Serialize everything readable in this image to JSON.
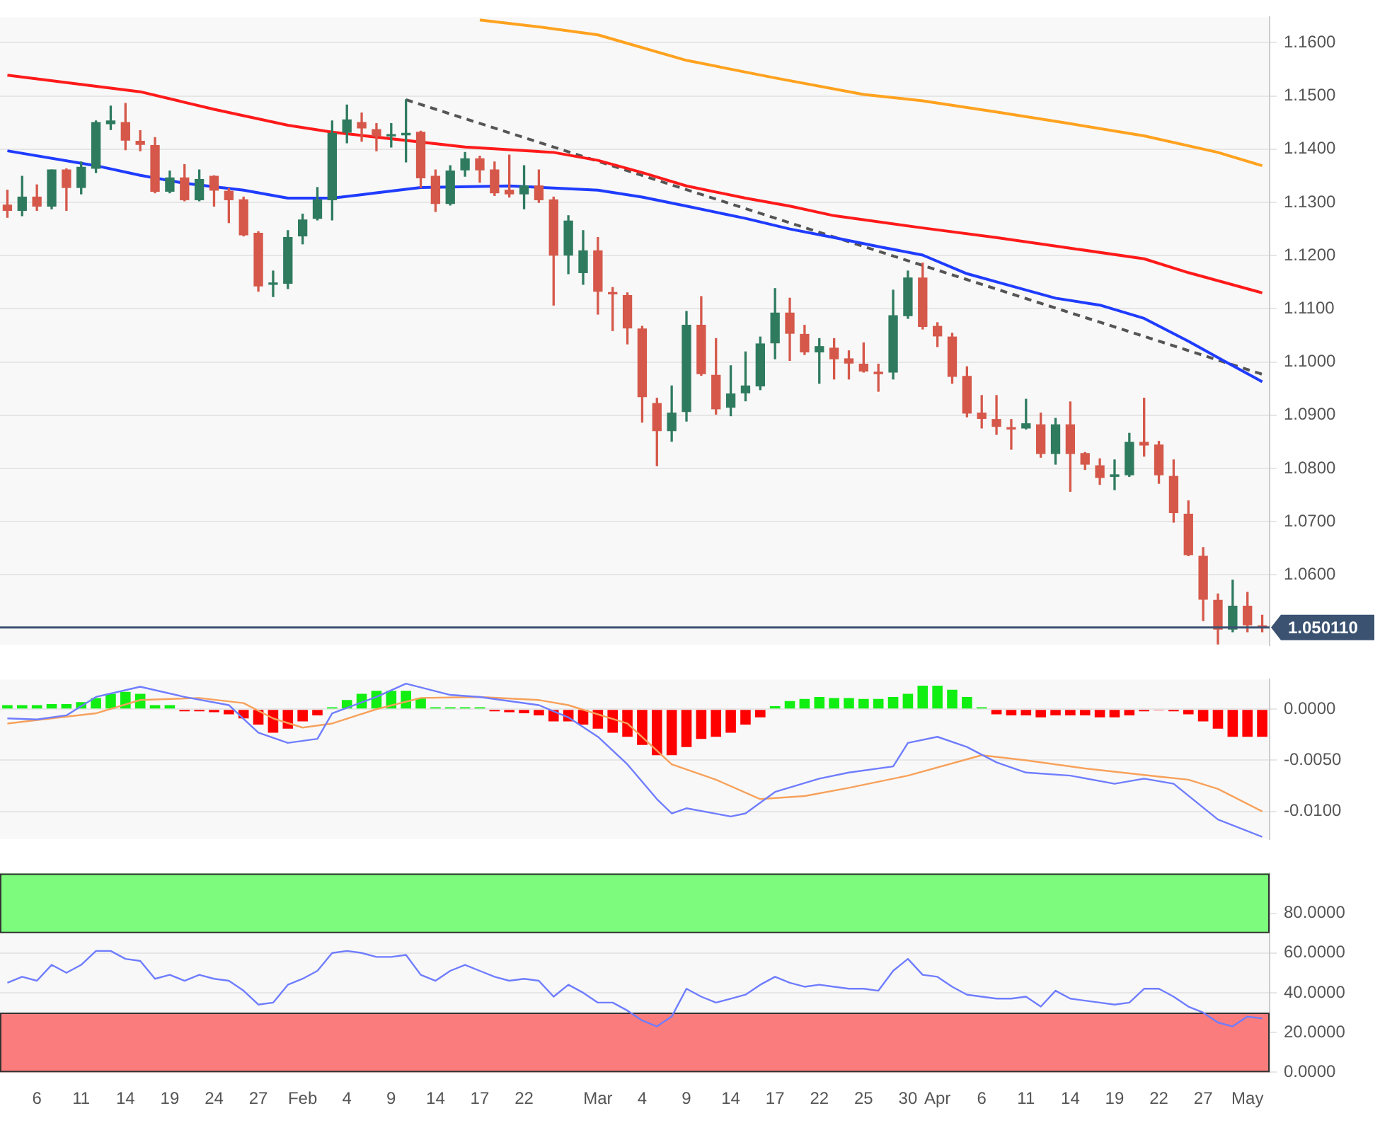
{
  "chart_data": [
    {
      "type": "candlestick",
      "grid": "y",
      "tick_labels": "y",
      "ohlc": [
        [
          1.1295,
          1.1323,
          1.1272,
          1.1285
        ],
        [
          1.1285,
          1.1349,
          1.1275,
          1.131
        ],
        [
          1.131,
          1.1333,
          1.1285,
          1.1293
        ],
        [
          1.1293,
          1.1361,
          1.1288,
          1.1361
        ],
        [
          1.1361,
          1.1363,
          1.1285,
          1.1328
        ],
        [
          1.1328,
          1.1376,
          1.1316,
          1.1366
        ],
        [
          1.1364,
          1.1453,
          1.1356,
          1.145
        ],
        [
          1.1448,
          1.1481,
          1.1437,
          1.1453
        ],
        [
          1.145,
          1.1486,
          1.1399,
          1.1417
        ],
        [
          1.1415,
          1.1435,
          1.1397,
          1.1409
        ],
        [
          1.1407,
          1.1422,
          1.1318,
          1.1321
        ],
        [
          1.1321,
          1.1359,
          1.1318,
          1.1346
        ],
        [
          1.1346,
          1.1371,
          1.1303,
          1.1305
        ],
        [
          1.1305,
          1.1361,
          1.1303,
          1.1343
        ],
        [
          1.1349,
          1.135,
          1.1293,
          1.1323
        ],
        [
          1.1321,
          1.1326,
          1.1262,
          1.1305
        ],
        [
          1.1305,
          1.131,
          1.1237,
          1.1239
        ],
        [
          1.1242,
          1.1245,
          1.1133,
          1.1143
        ],
        [
          1.1146,
          1.1171,
          1.1123,
          1.1148
        ],
        [
          1.1148,
          1.1247,
          1.1138,
          1.1234
        ],
        [
          1.1237,
          1.1278,
          1.1222,
          1.1267
        ],
        [
          1.127,
          1.1328,
          1.1267,
          1.1305
        ],
        [
          1.1305,
          1.1453,
          1.1267,
          1.143
        ],
        [
          1.1432,
          1.1483,
          1.1412,
          1.1455
        ],
        [
          1.145,
          1.1468,
          1.1415,
          1.144
        ],
        [
          1.1437,
          1.1448,
          1.1397,
          1.1425
        ],
        [
          1.1425,
          1.1448,
          1.1404,
          1.1427
        ],
        [
          1.1427,
          1.1493,
          1.1376,
          1.143
        ],
        [
          1.1432,
          1.1434,
          1.1328,
          1.1346
        ],
        [
          1.1349,
          1.1361,
          1.1283,
          1.1298
        ],
        [
          1.1298,
          1.1369,
          1.1295,
          1.1359
        ],
        [
          1.1361,
          1.1394,
          1.1349,
          1.1382
        ],
        [
          1.1382,
          1.1387,
          1.1338,
          1.1361
        ],
        [
          1.1361,
          1.1376,
          1.1313,
          1.1318
        ],
        [
          1.1323,
          1.1389,
          1.131,
          1.1316
        ],
        [
          1.1316,
          1.1369,
          1.1288,
          1.1331
        ],
        [
          1.1331,
          1.1361,
          1.13,
          1.1305
        ],
        [
          1.1305,
          1.131,
          1.1107,
          1.1201
        ],
        [
          1.1201,
          1.1275,
          1.1166,
          1.1265
        ],
        [
          1.1168,
          1.1247,
          1.1146,
          1.1209
        ],
        [
          1.1209,
          1.1234,
          1.109,
          1.1133
        ],
        [
          1.113,
          1.114,
          1.1059,
          1.1128
        ],
        [
          1.1125,
          1.113,
          1.1034,
          1.1064
        ],
        [
          1.1062,
          1.1067,
          1.0887,
          1.0935
        ],
        [
          1.0922,
          1.0932,
          1.0805,
          1.0871
        ],
        [
          1.0871,
          1.0955,
          1.0851,
          1.0904
        ],
        [
          1.0907,
          1.1095,
          1.0889,
          1.1069
        ],
        [
          1.1069,
          1.1123,
          1.0975,
          1.0978
        ],
        [
          1.0975,
          1.1044,
          1.0902,
          1.0912
        ],
        [
          1.0915,
          1.0993,
          1.0899,
          1.094
        ],
        [
          1.0942,
          1.1019,
          1.0927,
          1.0955
        ],
        [
          1.0955,
          1.1047,
          1.0948,
          1.1034
        ],
        [
          1.1036,
          1.1138,
          1.1006,
          1.1092
        ],
        [
          1.1092,
          1.112,
          1.1003,
          1.1054
        ],
        [
          1.1052,
          1.1069,
          1.1014,
          1.1019
        ],
        [
          1.1019,
          1.1044,
          1.096,
          1.1029
        ],
        [
          1.1026,
          1.1044,
          1.0968,
          1.1006
        ],
        [
          1.1006,
          1.1021,
          1.0968,
          1.0998
        ],
        [
          1.0996,
          1.1036,
          1.0981,
          1.0983
        ],
        [
          1.0981,
          1.0996,
          1.0945,
          1.0978
        ],
        [
          1.0981,
          1.1135,
          1.0968,
          1.1087
        ],
        [
          1.1087,
          1.1171,
          1.1082,
          1.1158
        ],
        [
          1.1158,
          1.1186,
          1.1062,
          1.1067
        ],
        [
          1.1067,
          1.1074,
          1.1029,
          1.1049
        ],
        [
          1.1047,
          1.1054,
          1.096,
          1.0973
        ],
        [
          1.0973,
          1.0991,
          1.0897,
          1.0904
        ],
        [
          1.0904,
          1.0937,
          1.0876,
          1.0894
        ],
        [
          1.0892,
          1.0937,
          1.0864,
          1.0879
        ],
        [
          1.0876,
          1.0892,
          1.0836,
          1.0874
        ],
        [
          1.0876,
          1.093,
          1.0874,
          1.0884
        ],
        [
          1.0882,
          1.0904,
          1.0821,
          1.0828
        ],
        [
          1.0828,
          1.0894,
          1.0808,
          1.0882
        ],
        [
          1.0882,
          1.0925,
          1.0757,
          1.0828
        ],
        [
          1.0828,
          1.083,
          1.0798,
          1.0808
        ],
        [
          1.0805,
          1.0818,
          1.077,
          1.0783
        ],
        [
          1.0785,
          1.0816,
          1.076,
          1.0788
        ],
        [
          1.0788,
          1.0866,
          1.0785,
          1.0849
        ],
        [
          1.0849,
          1.0932,
          1.0823,
          1.0844
        ],
        [
          1.0844,
          1.0851,
          1.0772,
          1.0788
        ],
        [
          1.0785,
          1.0816,
          1.0699,
          1.0717
        ],
        [
          1.0714,
          1.0739,
          1.0636,
          1.0638
        ],
        [
          1.0635,
          1.0651,
          1.0514,
          1.0554
        ],
        [
          1.0552,
          1.0564,
          1.047,
          1.0498
        ],
        [
          1.0498,
          1.059,
          1.0493,
          1.0541
        ],
        [
          1.0541,
          1.0567,
          1.0493,
          1.0506
        ],
        [
          1.0504,
          1.0524,
          1.0493,
          1.0501
        ]
      ],
      "colors": [
        "#d5584a",
        "#2f7b5f",
        "#d5584a",
        "#2f7b5f",
        "#d5584a",
        "#2f7b5f",
        "#2f7b5f",
        "#2f7b5f",
        "#d5584a",
        "#d5584a",
        "#d5584a",
        "#2f7b5f",
        "#d5584a",
        "#2f7b5f",
        "#d5584a",
        "#d5584a",
        "#d5584a",
        "#d5584a",
        "#2f7b5f",
        "#2f7b5f",
        "#2f7b5f",
        "#2f7b5f",
        "#2f7b5f",
        "#2f7b5f",
        "#d5584a",
        "#d5584a",
        "#2f7b5f",
        "#2f7b5f",
        "#d5584a",
        "#d5584a",
        "#2f7b5f",
        "#2f7b5f",
        "#d5584a",
        "#d5584a",
        "#d5584a",
        "#2f7b5f",
        "#d5584a",
        "#d5584a",
        "#2f7b5f",
        "#2f7b5f",
        "#d5584a",
        "#d5584a",
        "#d5584a",
        "#d5584a",
        "#d5584a",
        "#2f7b5f",
        "#2f7b5f",
        "#d5584a",
        "#d5584a",
        "#2f7b5f",
        "#2f7b5f",
        "#2f7b5f",
        "#2f7b5f",
        "#d5584a",
        "#d5584a",
        "#2f7b5f",
        "#d5584a",
        "#d5584a",
        "#d5584a",
        "#d5584a",
        "#2f7b5f",
        "#2f7b5f",
        "#d5584a",
        "#d5584a",
        "#d5584a",
        "#d5584a",
        "#d5584a",
        "#d5584a",
        "#d5584a",
        "#2f7b5f",
        "#d5584a",
        "#2f7b5f",
        "#d5584a",
        "#d5584a",
        "#d5584a",
        "#2f7b5f",
        "#2f7b5f",
        "#d5584a",
        "#d5584a",
        "#d5584a",
        "#d5584a",
        "#d5584a",
        "#d5584a",
        "#2f7b5f",
        "#d5584a",
        "#d5584a"
      ],
      "series": [
        {
          "type": "line",
          "color": "#1f3cff",
          "values": [
            1.1397,
            null,
            null,
            null,
            null,
            null,
            1.1369,
            null,
            null,
            1.1351,
            null,
            null,
            1.1336,
            null,
            null,
            null,
            1.1323,
            null,
            null,
            1.1308,
            null,
            null,
            1.1308,
            null,
            null,
            1.1318,
            null,
            null,
            1.1328,
            null,
            null,
            null,
            null,
            null,
            1.1331,
            null,
            null,
            null,
            null,
            null,
            1.1323,
            null,
            null,
            1.131,
            null,
            null,
            1.1293,
            null,
            null,
            null,
            1.127,
            null,
            null,
            1.125,
            null,
            null,
            1.1234,
            null,
            null,
            1.1217,
            null,
            null,
            1.1201,
            null,
            null,
            1.1166,
            null,
            null,
            1.1143,
            null,
            null,
            1.112,
            null,
            null,
            1.1107,
            null,
            null,
            1.1082,
            null,
            null,
            1.1039,
            null,
            null,
            1.0993,
            null,
            1.0963
          ]
        },
        {
          "type": "line",
          "color": "#ff1a1a",
          "values": [
            1.1539,
            null,
            null,
            null,
            null,
            null,
            null,
            null,
            null,
            1.1508,
            null,
            null,
            null,
            null,
            1.1475,
            null,
            null,
            null,
            null,
            1.1445,
            null,
            null,
            1.1432,
            null,
            null,
            null,
            null,
            null,
            null,
            null,
            null,
            1.1404,
            null,
            null,
            null,
            null,
            null,
            1.1394,
            null,
            null,
            1.1379,
            null,
            null,
            1.1356,
            null,
            null,
            1.1331,
            null,
            null,
            null,
            1.1308,
            null,
            null,
            1.1293,
            null,
            null,
            1.1275,
            null,
            null,
            null,
            null,
            null,
            1.1252,
            null,
            null,
            null,
            null,
            1.1234,
            null,
            null,
            null,
            null,
            1.1214,
            null,
            null,
            null,
            null,
            1.1194,
            null,
            null,
            1.1168,
            null,
            null,
            null,
            null,
            1.113
          ]
        },
        {
          "type": "line",
          "color": "#ffa21f",
          "values": [
            null,
            null,
            null,
            null,
            null,
            null,
            null,
            null,
            null,
            null,
            null,
            null,
            null,
            null,
            null,
            null,
            null,
            null,
            null,
            null,
            null,
            null,
            null,
            null,
            null,
            null,
            null,
            null,
            null,
            null,
            null,
            null,
            1.1643,
            null,
            null,
            null,
            1.163,
            null,
            null,
            null,
            1.1615,
            null,
            null,
            null,
            null,
            null,
            1.1567,
            null,
            null,
            null,
            null,
            null,
            1.1534,
            null,
            null,
            null,
            null,
            null,
            1.1503,
            null,
            null,
            null,
            1.1491,
            null,
            null,
            null,
            null,
            1.147,
            null,
            null,
            null,
            null,
            1.1448,
            null,
            null,
            null,
            null,
            1.1425,
            null,
            null,
            null,
            null,
            1.1394,
            null,
            null,
            1.1369
          ]
        },
        {
          "type": "line",
          "color": "#555555",
          "line_style": "dashed",
          "values": [
            null,
            null,
            null,
            null,
            null,
            null,
            null,
            null,
            null,
            null,
            null,
            null,
            null,
            null,
            null,
            null,
            null,
            null,
            null,
            null,
            null,
            null,
            null,
            null,
            null,
            null,
            null,
            1.1493,
            null,
            null,
            null,
            null,
            null,
            null,
            null,
            null,
            null,
            null,
            null,
            null,
            null,
            null,
            null,
            null,
            null,
            null,
            null,
            null,
            null,
            null,
            null,
            null,
            null,
            null,
            null,
            null,
            null,
            null,
            null,
            null,
            null,
            null,
            null,
            null,
            null,
            null,
            null,
            null,
            null,
            null,
            null,
            null,
            null,
            null,
            null,
            null,
            null,
            null,
            null,
            null,
            null,
            null,
            null,
            null,
            null,
            1.0977
          ]
        }
      ],
      "ylim": [
        1.0468,
        1.1648
      ],
      "yticks": [
        {
          "value": 1.06,
          "label": "1.0600"
        },
        {
          "value": 1.07,
          "label": "1.0700"
        },
        {
          "value": 1.08,
          "label": "1.0800"
        },
        {
          "value": 1.09,
          "label": "1.0900"
        },
        {
          "value": 1.1,
          "label": "1.1000"
        },
        {
          "value": 1.11,
          "label": "1.1100"
        },
        {
          "value": 1.12,
          "label": "1.1200"
        },
        {
          "value": 1.13,
          "label": "1.1300"
        },
        {
          "value": 1.14,
          "label": "1.1400"
        },
        {
          "value": 1.15,
          "label": "1.1500"
        },
        {
          "value": 1.16,
          "label": "1.1600"
        }
      ],
      "ref_lines": [
        {
          "axis": "y",
          "value": 1.05011,
          "label": "1.050110",
          "color": "#3b5271"
        }
      ]
    },
    {
      "type": "bar",
      "grid": "y",
      "tick_labels": "y",
      "series": [
        {
          "type": "bar",
          "values": [
            0.0004,
            0.0004,
            0.0004,
            0.0005,
            0.0005,
            0.0007,
            0.0011,
            0.0015,
            0.0017,
            0.0015,
            0.0004,
            0.0004,
            -0.0002,
            -0.0002,
            -0.0003,
            -0.0005,
            -0.0009,
            -0.0015,
            -0.0023,
            -0.0019,
            -0.0012,
            -0.0006,
            0.0002,
            0.0009,
            0.0015,
            0.0018,
            0.0018,
            0.0018,
            0.0011,
            0.0002,
            0.0002,
            0.0002,
            0.0002,
            -0.0002,
            -0.0003,
            -0.0004,
            -0.0006,
            -0.0012,
            -0.0012,
            -0.0015,
            -0.0019,
            -0.0023,
            -0.0027,
            -0.0035,
            -0.0045,
            -0.0045,
            -0.0037,
            -0.0029,
            -0.0027,
            -0.0023,
            -0.0015,
            -0.0008,
            0.0003,
            0.0008,
            0.001,
            0.0012,
            0.0011,
            0.0011,
            0.001,
            0.001,
            0.0012,
            0.0015,
            0.0023,
            0.0023,
            0.0019,
            0.0012,
            0.0002,
            -0.0005,
            -0.0006,
            -0.0006,
            -0.0008,
            -0.0006,
            -0.0006,
            -0.0006,
            -0.0008,
            -0.0008,
            -0.0006,
            -0.0002,
            -0.0001,
            -0.0002,
            -0.0005,
            -0.0012,
            -0.0019,
            -0.0027,
            -0.0027,
            -0.0027
          ],
          "colors": [
            "#11ee11",
            "#11ee11",
            "#11ee11",
            "#11ee11",
            "#11ee11",
            "#11ee11",
            "#11ee11",
            "#11ee11",
            "#11ee11",
            "#11ee11",
            "#11ee11",
            "#11ee11",
            "#ff0000",
            "#ff0000",
            "#ff0000",
            "#ff0000",
            "#ff0000",
            "#ff0000",
            "#ff0000",
            "#ff0000",
            "#ff0000",
            "#ff0000",
            "#11ee11",
            "#11ee11",
            "#11ee11",
            "#11ee11",
            "#11ee11",
            "#11ee11",
            "#11ee11",
            "#11ee11",
            "#11ee11",
            "#11ee11",
            "#11ee11",
            "#ff0000",
            "#ff0000",
            "#ff0000",
            "#ff0000",
            "#ff0000",
            "#ff0000",
            "#ff0000",
            "#ff0000",
            "#ff0000",
            "#ff0000",
            "#ff0000",
            "#ff0000",
            "#ff0000",
            "#ff0000",
            "#ff0000",
            "#ff0000",
            "#ff0000",
            "#ff0000",
            "#ff0000",
            "#11ee11",
            "#11ee11",
            "#11ee11",
            "#11ee11",
            "#11ee11",
            "#11ee11",
            "#11ee11",
            "#11ee11",
            "#11ee11",
            "#11ee11",
            "#11ee11",
            "#11ee11",
            "#11ee11",
            "#11ee11",
            "#11ee11",
            "#ff0000",
            "#ff0000",
            "#ff0000",
            "#ff0000",
            "#ff0000",
            "#ff0000",
            "#ff0000",
            "#ff0000",
            "#ff0000",
            "#ff0000",
            "#ff0000",
            "#ff0000",
            "#ff0000",
            "#ff0000",
            "#ff0000",
            "#ff0000",
            "#ff0000",
            "#ff0000",
            "#ff0000"
          ]
        },
        {
          "type": "line",
          "color": "#6f7dff",
          "values": [
            -0.0009,
            null,
            -0.001,
            null,
            -0.0006,
            null,
            0.0012,
            null,
            null,
            0.0022,
            null,
            null,
            0.0012,
            null,
            null,
            0.0004,
            null,
            -0.0023,
            null,
            -0.0033,
            null,
            -0.0029,
            -0.0004,
            null,
            null,
            0.0012,
            null,
            0.0025,
            null,
            null,
            0.0014,
            null,
            0.0012,
            null,
            null,
            null,
            0.0004,
            null,
            -0.0008,
            null,
            -0.0027,
            null,
            -0.0054,
            null,
            -0.0088,
            -0.0102,
            -0.0097,
            null,
            null,
            -0.0105,
            -0.0102,
            null,
            -0.0081,
            null,
            null,
            -0.0068,
            null,
            -0.0062,
            null,
            null,
            -0.0056,
            -0.0033,
            null,
            -0.0027,
            null,
            -0.0037,
            null,
            -0.0052,
            null,
            -0.0062,
            null,
            null,
            -0.0065,
            null,
            null,
            -0.0073,
            null,
            -0.0068,
            null,
            -0.0073,
            null,
            null,
            -0.0108,
            null,
            null,
            -0.0125
          ]
        },
        {
          "type": "line",
          "color": "#f7a15b",
          "values": [
            -0.0014,
            null,
            null,
            null,
            null,
            null,
            -0.0004,
            null,
            null,
            0.0009,
            null,
            null,
            null,
            0.0011,
            null,
            null,
            0.0006,
            null,
            -0.0009,
            null,
            -0.0018,
            null,
            -0.0014,
            null,
            null,
            0,
            null,
            null,
            0.0011,
            null,
            null,
            null,
            0.0012,
            null,
            null,
            null,
            0.0009,
            null,
            0.0004,
            null,
            null,
            null,
            -0.0014,
            null,
            null,
            -0.0054,
            null,
            null,
            -0.0069,
            null,
            null,
            -0.0088,
            null,
            null,
            -0.0085,
            null,
            null,
            -0.0077,
            null,
            null,
            null,
            -0.0065,
            null,
            null,
            null,
            null,
            -0.0045,
            null,
            null,
            -0.005,
            null,
            null,
            null,
            -0.0058,
            null,
            null,
            null,
            null,
            -0.0066,
            null,
            -0.0069,
            null,
            -0.0078,
            null,
            null,
            -0.01
          ]
        }
      ],
      "ylim": [
        -0.0127,
        0.0029
      ],
      "yticks": [
        {
          "value": 0,
          "label": "0.0000"
        },
        {
          "value": -0.005,
          "label": "-0.0050"
        },
        {
          "value": -0.01,
          "label": "-0.0100"
        }
      ]
    },
    {
      "type": "line",
      "grid": "y",
      "categories": [
        null,
        null,
        "6",
        null,
        null,
        "11",
        null,
        null,
        "14",
        null,
        null,
        "19",
        null,
        null,
        "24",
        null,
        null,
        "27",
        null,
        null,
        "Feb",
        null,
        null,
        "4",
        null,
        null,
        "9",
        null,
        null,
        "14",
        null,
        null,
        "17",
        null,
        null,
        "22",
        null,
        null,
        null,
        null,
        "Mar",
        null,
        null,
        "4",
        null,
        null,
        "9",
        null,
        null,
        "14",
        null,
        null,
        "17",
        null,
        null,
        "22",
        null,
        null,
        "25",
        null,
        null,
        "30",
        null,
        "Apr",
        null,
        null,
        "6",
        null,
        null,
        "11",
        null,
        null,
        "14",
        null,
        null,
        "19",
        null,
        null,
        "22",
        null,
        null,
        "27",
        null,
        null,
        "May",
        null
      ],
      "series": [
        {
          "type": "line",
          "color": "#6f7dff",
          "values": [
            45,
            48,
            46,
            54,
            50,
            54,
            61,
            61,
            57,
            56,
            47,
            49,
            46,
            49,
            47,
            46,
            41,
            34,
            35,
            44,
            47,
            51,
            60,
            61,
            60,
            58,
            58,
            59,
            49,
            46,
            51,
            54,
            51,
            48,
            46,
            47,
            46,
            38,
            44,
            40,
            35,
            35,
            31,
            26,
            23,
            28,
            42,
            38,
            35,
            37,
            39,
            44,
            48,
            45,
            43,
            44,
            43,
            42,
            42,
            41,
            51,
            57,
            49,
            48,
            43,
            39,
            38,
            37,
            37,
            38,
            33,
            41,
            37,
            36,
            35,
            34,
            35,
            42,
            42,
            38,
            33,
            30,
            25,
            23,
            28,
            27
          ]
        }
      ],
      "ylim": [
        0,
        100
      ],
      "yticks": [
        {
          "value": 0,
          "label": "0.0000"
        },
        {
          "value": 20,
          "label": "20.0000"
        },
        {
          "value": 40,
          "label": "40.0000"
        },
        {
          "value": 60,
          "label": "60.0000"
        },
        {
          "value": 80,
          "label": "80.0000"
        }
      ],
      "bands": [
        {
          "axis": "y",
          "from": 70,
          "to": 100,
          "color": "#7cfb7c"
        },
        {
          "axis": "y",
          "from": 0,
          "to": 30,
          "color": "#fb7c7c"
        }
      ]
    }
  ]
}
